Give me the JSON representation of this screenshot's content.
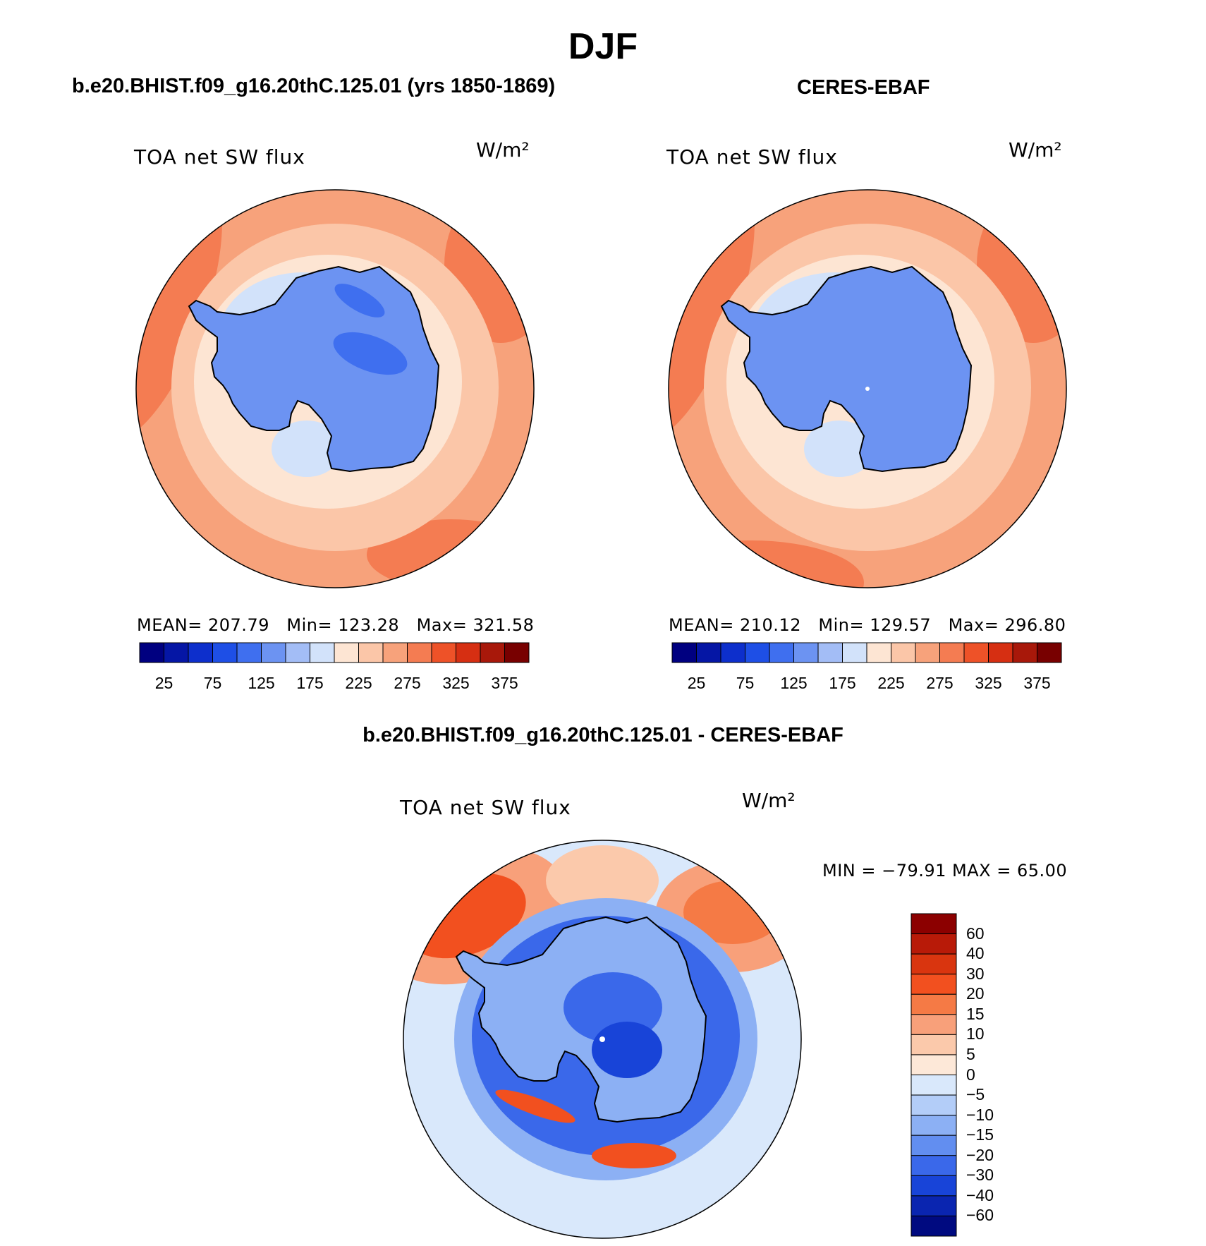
{
  "title": "DJF",
  "panels": {
    "model": {
      "title": "b.e20.BHIST.f09_g16.20thC.125.01 (yrs 1850-1869)",
      "variable": "TOA net SW flux",
      "units": "W/m²",
      "stats": {
        "mean_label": "MEAN=",
        "mean": "207.79",
        "min_label": "Min=",
        "min": "123.28",
        "max_label": "Max=",
        "max": "321.58"
      }
    },
    "obs": {
      "title": "CERES-EBAF",
      "variable": "TOA net SW flux",
      "units": "W/m²",
      "stats": {
        "mean_label": "MEAN=",
        "mean": "210.12",
        "min_label": "Min=",
        "min": "129.57",
        "max_label": "Max=",
        "max": "296.80"
      }
    },
    "diff": {
      "title": "b.e20.BHIST.f09_g16.20thC.125.01 - CERES-EBAF",
      "variable": "TOA net SW flux",
      "units": "W/m²",
      "stats_text": "MIN = −79.91 MAX =   65.00"
    }
  },
  "chart_data": [
    {
      "type": "heatmap",
      "projection": "south-polar-stereographic",
      "title": "b.e20.BHIST.f09_g16.20thC.125.01 (yrs 1850-1869)",
      "variable": "TOA net SW flux",
      "units": "W/m²",
      "mean": 207.79,
      "min": 123.28,
      "max": 321.58,
      "colorbar": {
        "levels": [
          25,
          50,
          75,
          100,
          125,
          150,
          175,
          200,
          225,
          250,
          275,
          300,
          325,
          350,
          375
        ],
        "tick_labels": [
          "25",
          "75",
          "125",
          "175",
          "225",
          "275",
          "325",
          "375"
        ],
        "colors": [
          "#000080",
          "#0516a5",
          "#0d2fcc",
          "#1e4fe6",
          "#3f6fef",
          "#6c93f2",
          "#a3bdf6",
          "#d2e2fa",
          "#fde5d3",
          "#fbc6a8",
          "#f7a27b",
          "#f47c52",
          "#ee5228",
          "#d62f12",
          "#a8180a",
          "#780000"
        ]
      }
    },
    {
      "type": "heatmap",
      "projection": "south-polar-stereographic",
      "title": "CERES-EBAF",
      "variable": "TOA net SW flux",
      "units": "W/m²",
      "mean": 210.12,
      "min": 129.57,
      "max": 296.8,
      "colorbar": {
        "levels": [
          25,
          50,
          75,
          100,
          125,
          150,
          175,
          200,
          225,
          250,
          275,
          300,
          325,
          350,
          375
        ],
        "tick_labels": [
          "25",
          "75",
          "125",
          "175",
          "225",
          "275",
          "325",
          "375"
        ],
        "colors": [
          "#000080",
          "#0516a5",
          "#0d2fcc",
          "#1e4fe6",
          "#3f6fef",
          "#6c93f2",
          "#a3bdf6",
          "#d2e2fa",
          "#fde5d3",
          "#fbc6a8",
          "#f7a27b",
          "#f47c52",
          "#ee5228",
          "#d62f12",
          "#a8180a",
          "#780000"
        ]
      }
    },
    {
      "type": "heatmap",
      "projection": "south-polar-stereographic",
      "title": "b.e20.BHIST.f09_g16.20thC.125.01 - CERES-EBAF",
      "variable": "TOA net SW flux",
      "units": "W/m²",
      "min": -79.91,
      "max": 65.0,
      "colorbar": {
        "orientation": "vertical",
        "levels": [
          60,
          40,
          30,
          20,
          15,
          10,
          5,
          0,
          -5,
          -10,
          -15,
          -20,
          -30,
          -40,
          -60
        ],
        "tick_labels": [
          "60",
          "40",
          "30",
          "20",
          "15",
          "10",
          "5",
          "0",
          "−5",
          "−10",
          "−15",
          "−20",
          "−30",
          "−40",
          "−60"
        ],
        "colors": [
          "#8c0000",
          "#b81a08",
          "#d9350f",
          "#f2501f",
          "#f57a45",
          "#f8a07a",
          "#fbc9ab",
          "#fde8d8",
          "#d9e8fb",
          "#b3cdf8",
          "#8cb0f4",
          "#628ef0",
          "#3a68ea",
          "#1844d8",
          "#0a25b0",
          "#000a80"
        ]
      }
    }
  ]
}
